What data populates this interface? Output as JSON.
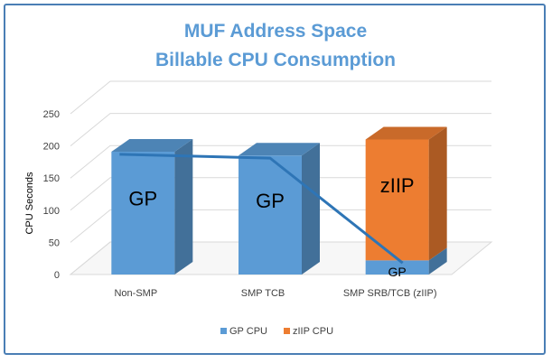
{
  "chart_data": {
    "type": "bar",
    "title_lines": [
      "MUF Address Space",
      "Billable CPU Consumption"
    ],
    "ylabel": "CPU Seconds",
    "xlabel": "",
    "ylim": [
      0,
      250
    ],
    "yticks": [
      0,
      50,
      100,
      150,
      200,
      250
    ],
    "categories": [
      "Non-SMP",
      "SMP TCB",
      "SMP SRB/TCB  (zIIP)"
    ],
    "series": [
      {
        "name": "GP CPU",
        "values": [
          191,
          185,
          22
        ],
        "color": "#5b9bd5",
        "labels": [
          "GP",
          "GP",
          "GP"
        ]
      },
      {
        "name": "zIIP CPU",
        "values": [
          0,
          0,
          188
        ],
        "color": "#ed7d31",
        "labels": [
          "",
          "",
          "zIIP"
        ]
      }
    ],
    "line": {
      "values": [
        187,
        181,
        18
      ],
      "color": "#2e75b6"
    },
    "grid": true,
    "legend_position": "bottom-center",
    "style": "3d-column"
  }
}
